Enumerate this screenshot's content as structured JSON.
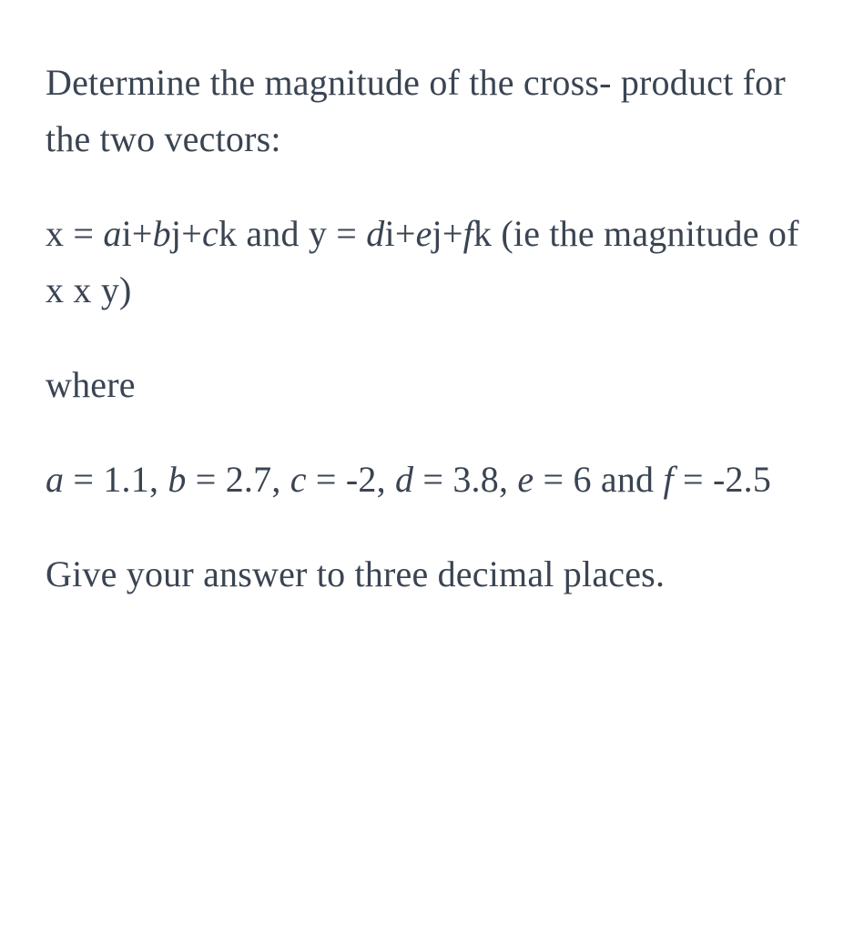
{
  "p1": {
    "text": "Determine the magnitude of the cross- product for the two vectors:"
  },
  "p2": {
    "x_label": "x",
    "eq1": " = ",
    "a": "a",
    "i": "i",
    "plus1": "+",
    "b": "b",
    "j": "j",
    "plus2": "+",
    "c": "c",
    "k": "k",
    "and": " and ",
    "y_label": "y",
    "eq2": " = ",
    "d": "d",
    "i2": "i",
    "plus3": "+",
    "e": "e",
    "j2": "j",
    "plus4": "+",
    "f": "f",
    "k2": "k",
    "ie_open": " (ie the magnitude of ",
    "x2": "x",
    "times": " x ",
    "y2": "y",
    "close": ")"
  },
  "p3": {
    "text": "where"
  },
  "p4": {
    "a": "a",
    "a_eq": " = 1.1, ",
    "b": "b",
    "b_eq": " = 2.7, ",
    "c": "c",
    "c_eq": " = -2, ",
    "d": "d",
    "d_eq": " = 3.8, ",
    "e": "e",
    "e_eq": " = 6 and ",
    "f": "f",
    "f_eq": " = -2.5"
  },
  "p5": {
    "prefix": "Give your answer to ",
    "bold": "three decimal places",
    "suffix": "."
  },
  "colors": {
    "text": "#3a4452",
    "background": "#ffffff"
  },
  "typography": {
    "font_family": "Georgia, Times New Roman, serif",
    "font_size": 40,
    "line_height": 1.55,
    "paragraph_spacing": 42
  }
}
